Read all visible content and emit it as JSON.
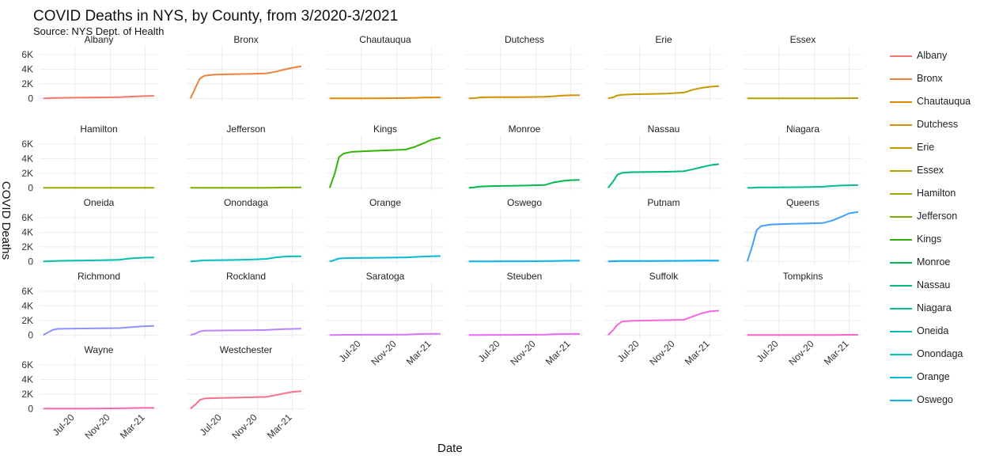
{
  "chart_data": {
    "type": "line",
    "title": "COVID Deaths in NYS, by County, from 3/2020-3/2021",
    "subtitle": "Source: NYS Dept. of Health",
    "xlabel": "Date",
    "ylabel": "COVID Deaths",
    "x_ticks": [
      "Jul-20",
      "Nov-20",
      "Mar-21"
    ],
    "x_tick_dates": [
      "2020-07-01",
      "2020-11-01",
      "2021-03-01"
    ],
    "x_range": [
      "2020-03-01",
      "2021-04-15"
    ],
    "y_ticks": [
      "0",
      "2K",
      "4K",
      "6K"
    ],
    "y_tick_values": [
      0,
      2000,
      4000,
      6000
    ],
    "ylim": [
      -400,
      7200
    ],
    "grid": true,
    "legend_placement": "right",
    "x": [
      "2020-03-14",
      "2020-04-01",
      "2020-04-15",
      "2020-05-01",
      "2020-06-01",
      "2020-08-01",
      "2020-10-01",
      "2020-12-01",
      "2021-01-01",
      "2021-02-01",
      "2021-03-01",
      "2021-04-01"
    ],
    "series": [
      {
        "name": "Albany",
        "color": "#F8766D",
        "values": [
          0,
          20,
          50,
          70,
          90,
          110,
          130,
          160,
          230,
          280,
          320,
          350
        ]
      },
      {
        "name": "Bronx",
        "color": "#EC823C",
        "values": [
          0,
          1500,
          2700,
          3100,
          3250,
          3320,
          3360,
          3420,
          3650,
          3950,
          4200,
          4400
        ]
      },
      {
        "name": "Chautauqua",
        "color": "#E38900",
        "values": [
          0,
          0,
          0,
          0,
          5,
          10,
          20,
          40,
          80,
          110,
          130,
          140
        ]
      },
      {
        "name": "Dutchess",
        "color": "#D39200",
        "values": [
          0,
          30,
          100,
          150,
          160,
          170,
          190,
          220,
          300,
          380,
          420,
          450
        ]
      },
      {
        "name": "Erie",
        "color": "#C59900",
        "values": [
          0,
          150,
          400,
          500,
          550,
          600,
          650,
          800,
          1200,
          1450,
          1600,
          1700
        ]
      },
      {
        "name": "Essex",
        "color": "#B3A000",
        "values": [
          0,
          0,
          0,
          0,
          2,
          3,
          5,
          8,
          15,
          20,
          25,
          30
        ]
      },
      {
        "name": "Hamilton",
        "color": "#9CA700",
        "values": [
          0,
          0,
          0,
          0,
          0,
          0,
          1,
          1,
          2,
          2,
          2,
          2
        ]
      },
      {
        "name": "Jefferson",
        "color": "#7CAE00",
        "values": [
          0,
          0,
          0,
          1,
          2,
          3,
          5,
          10,
          25,
          40,
          50,
          55
        ]
      },
      {
        "name": "Kings",
        "color": "#2FB600",
        "values": [
          0,
          2000,
          4200,
          4700,
          4950,
          5050,
          5150,
          5250,
          5600,
          6100,
          6600,
          6900
        ]
      },
      {
        "name": "Monroe",
        "color": "#00B94E",
        "values": [
          0,
          60,
          150,
          200,
          240,
          280,
          320,
          380,
          750,
          950,
          1050,
          1100
        ]
      },
      {
        "name": "Nassau",
        "color": "#00BB7A",
        "values": [
          0,
          900,
          1800,
          2050,
          2150,
          2180,
          2210,
          2270,
          2550,
          2850,
          3100,
          3250
        ]
      },
      {
        "name": "Niagara",
        "color": "#00BD96",
        "values": [
          0,
          10,
          40,
          60,
          70,
          80,
          100,
          150,
          250,
          320,
          350,
          370
        ]
      },
      {
        "name": "Oneida",
        "color": "#00BFAD",
        "values": [
          0,
          20,
          50,
          80,
          100,
          130,
          160,
          220,
          380,
          480,
          520,
          540
        ]
      },
      {
        "name": "Onondaga",
        "color": "#00C0C0",
        "values": [
          0,
          40,
          100,
          150,
          170,
          200,
          250,
          350,
          550,
          650,
          700,
          720
        ]
      },
      {
        "name": "Orange",
        "color": "#00BCD8",
        "values": [
          0,
          200,
          400,
          450,
          480,
          500,
          520,
          560,
          620,
          680,
          720,
          740
        ]
      },
      {
        "name": "Oswego",
        "color": "#00B5EB",
        "values": [
          0,
          0,
          5,
          10,
          15,
          20,
          25,
          40,
          70,
          90,
          100,
          110
        ]
      },
      {
        "name": "Putnam",
        "color": "#00ACFC",
        "values": [
          0,
          20,
          50,
          60,
          65,
          70,
          75,
          85,
          100,
          110,
          115,
          120
        ]
      },
      {
        "name": "Queens",
        "color": "#3EA1FF",
        "values": [
          0,
          2200,
          4300,
          4850,
          5050,
          5150,
          5200,
          5280,
          5600,
          6100,
          6600,
          6800
        ]
      },
      {
        "name": "Richmond",
        "color": "#8F91FF",
        "values": [
          0,
          400,
          700,
          850,
          880,
          900,
          920,
          960,
          1050,
          1150,
          1220,
          1250
        ]
      },
      {
        "name": "Rockland",
        "color": "#B983FF",
        "values": [
          0,
          200,
          500,
          600,
          620,
          640,
          660,
          700,
          760,
          820,
          850,
          870
        ]
      },
      {
        "name": "Saratoga",
        "color": "#D675FF",
        "values": [
          0,
          10,
          20,
          30,
          35,
          40,
          50,
          70,
          110,
          150,
          170,
          180
        ]
      },
      {
        "name": "Steuben",
        "color": "#E96AF5",
        "values": [
          0,
          5,
          10,
          15,
          20,
          25,
          35,
          60,
          110,
          140,
          150,
          155
        ]
      },
      {
        "name": "Suffolk",
        "color": "#F566DF",
        "values": [
          0,
          700,
          1400,
          1850,
          1950,
          2000,
          2040,
          2100,
          2550,
          3000,
          3250,
          3350
        ]
      },
      {
        "name": "Tompkins",
        "color": "#FC63C8",
        "values": [
          0,
          0,
          0,
          0,
          1,
          2,
          3,
          5,
          15,
          25,
          30,
          32
        ]
      },
      {
        "name": "Wayne",
        "color": "#FD68AE",
        "values": [
          0,
          0,
          2,
          5,
          8,
          12,
          20,
          40,
          80,
          100,
          110,
          115
        ]
      },
      {
        "name": "Westchester",
        "color": "#F8708F",
        "values": [
          0,
          600,
          1200,
          1400,
          1450,
          1500,
          1550,
          1620,
          1850,
          2100,
          2300,
          2400
        ]
      }
    ]
  },
  "legend": {
    "items": [
      {
        "label": "Albany",
        "color": "#F8766D"
      },
      {
        "label": "Bronx",
        "color": "#EC823C"
      },
      {
        "label": "Chautauqua",
        "color": "#E38900"
      },
      {
        "label": "Dutchess",
        "color": "#D39200"
      },
      {
        "label": "Erie",
        "color": "#C59900"
      },
      {
        "label": "Essex",
        "color": "#B3A000"
      },
      {
        "label": "Hamilton",
        "color": "#9CA700"
      },
      {
        "label": "Jefferson",
        "color": "#7CAE00"
      },
      {
        "label": "Kings",
        "color": "#2FB600"
      },
      {
        "label": "Monroe",
        "color": "#00B94E"
      },
      {
        "label": "Nassau",
        "color": "#00BB7A"
      },
      {
        "label": "Niagara",
        "color": "#00BD96"
      },
      {
        "label": "Oneida",
        "color": "#00BFAD"
      },
      {
        "label": "Onondaga",
        "color": "#00C0C0"
      },
      {
        "label": "Orange",
        "color": "#00BCD8"
      },
      {
        "label": "Oswego",
        "color": "#00B5EB"
      }
    ]
  }
}
